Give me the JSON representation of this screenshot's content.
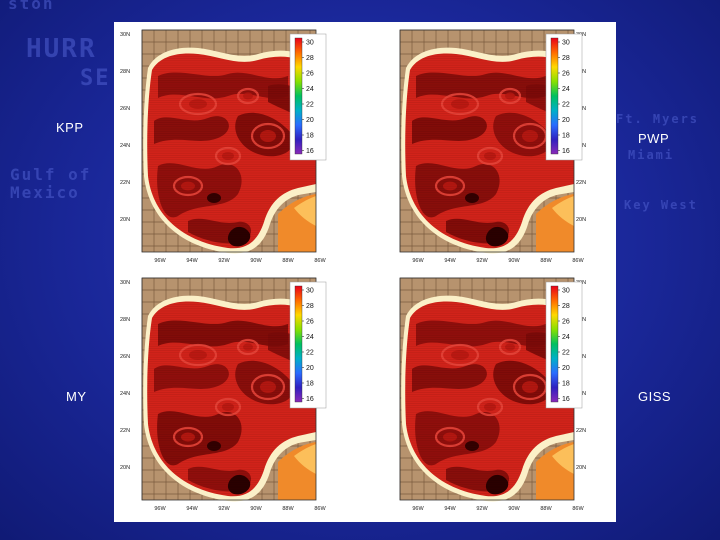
{
  "background": {
    "text_1": "HURR",
    "text_2": "SE",
    "text_3": "Gulf of",
    "text_4": "Mexico",
    "text_5": "ston",
    "text_6": "Ft. Myers",
    "text_7": "Miami",
    "text_8": "Key West"
  },
  "panels": [
    {
      "id": "kpp",
      "label": "KPP",
      "colorbar_ticks": [
        "30",
        "28",
        "26",
        "24",
        "22",
        "20",
        "18",
        "16"
      ],
      "lat_labels": [
        "30N",
        "28N",
        "26N",
        "24N",
        "22N",
        "20N"
      ],
      "lon_labels": [
        "96W",
        "94W",
        "92W",
        "90W",
        "88W",
        "86W"
      ]
    },
    {
      "id": "pwp",
      "label": "PWP",
      "colorbar_ticks": [
        "30",
        "28",
        "26",
        "24",
        "22",
        "20",
        "18",
        "16"
      ],
      "lat_labels": [
        "30N",
        "28N",
        "26N",
        "24N",
        "22N",
        "20N"
      ],
      "lon_labels": [
        "96W",
        "94W",
        "92W",
        "90W",
        "88W",
        "86W"
      ]
    },
    {
      "id": "my",
      "label": "MY",
      "colorbar_ticks": [
        "30",
        "28",
        "26",
        "24",
        "22",
        "20",
        "18",
        "16"
      ],
      "lat_labels": [
        "30N",
        "28N",
        "26N",
        "24N",
        "22N",
        "20N"
      ],
      "lon_labels": [
        "96W",
        "94W",
        "92W",
        "90W",
        "88W",
        "86W"
      ]
    },
    {
      "id": "giss",
      "label": "GISS",
      "colorbar_ticks": [
        "30",
        "28",
        "26",
        "24",
        "22",
        "20",
        "18",
        "16"
      ],
      "lat_labels": [
        "30N",
        "28N",
        "26N",
        "24N",
        "22N",
        "20N"
      ],
      "lon_labels": [
        "96W",
        "94W",
        "92W",
        "90W",
        "88W",
        "86W"
      ]
    }
  ],
  "colors": {
    "land": "#b7936e",
    "coast": "#fbf0c8",
    "sst_high": "#d2231a",
    "sst_dark": "#7a0a08",
    "sst_black": "#2a0000",
    "warm_orange": "#f08a2a",
    "ocean_bg": "#1a2799"
  },
  "colorbar_colors": [
    "#e8001a",
    "#ff6a00",
    "#ffd800",
    "#88e000",
    "#00c060",
    "#00b0c8",
    "#2a6cff",
    "#3020c0",
    "#8a2ab8"
  ]
}
